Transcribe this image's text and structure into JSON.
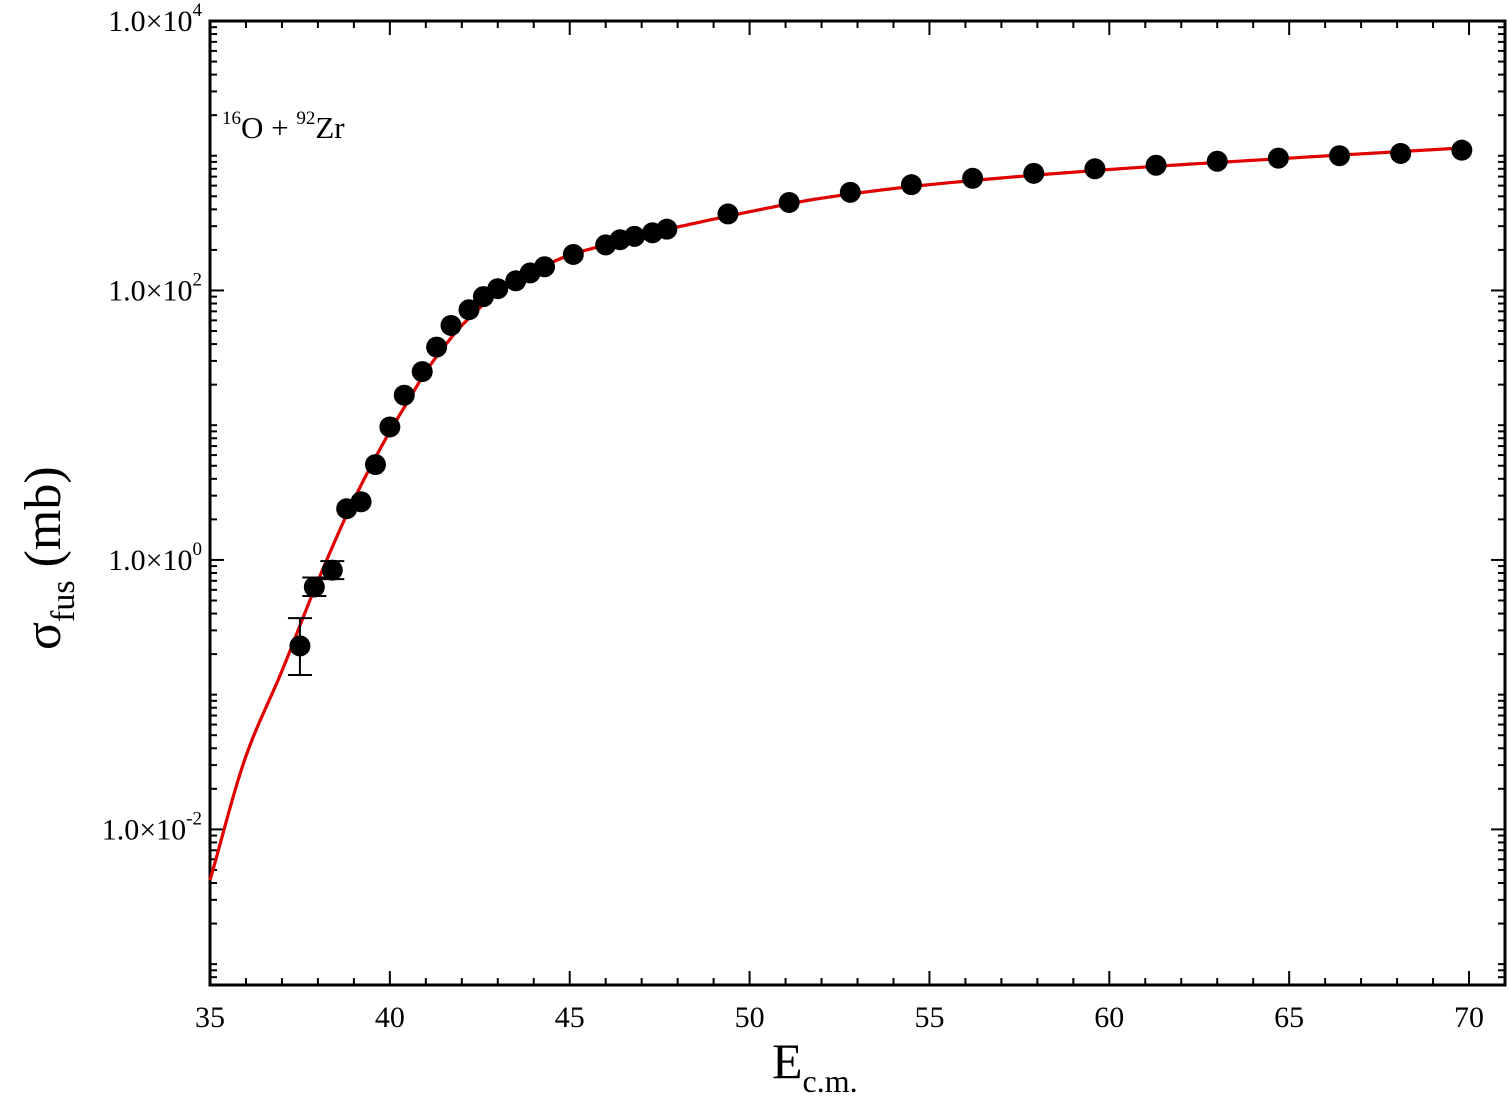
{
  "chart_data": {
    "type": "scatter",
    "title": "",
    "annotation": {
      "mass1": "16",
      "element1": "O",
      "plus": " + ",
      "mass2": "92",
      "element2": "Zr"
    },
    "xlabel": {
      "main": "E",
      "sub": "c.m."
    },
    "ylabel": {
      "main": "σ",
      "sub": "fus",
      "rest": " (mb)"
    },
    "x_scale": "linear",
    "y_scale": "log",
    "xlim": [
      35,
      71
    ],
    "ylim": [
      0.0007,
      10000
    ],
    "x_ticks": [
      35,
      40,
      45,
      50,
      55,
      60,
      65,
      70
    ],
    "x_tick_labels": [
      "35",
      "40",
      "45",
      "50",
      "55",
      "60",
      "65",
      "70"
    ],
    "y_ticks": [
      {
        "value": 10000,
        "mant": "1.0×10",
        "exp": "4"
      },
      {
        "value": 100,
        "mant": "1.0×10",
        "exp": "2"
      },
      {
        "value": 1,
        "mant": "1.0×10",
        "exp": "0"
      },
      {
        "value": 0.01,
        "mant": "1.0×10",
        "exp": "-2"
      }
    ],
    "grid": false,
    "colors": {
      "points": "#000000",
      "fit_line": "#e00000",
      "axes": "#000000"
    },
    "series": [
      {
        "kind": "points_with_errorbars",
        "points": [
          {
            "x": 37.5,
            "y": 0.23,
            "lo": 0.14,
            "hi": 0.37
          },
          {
            "x": 37.9,
            "y": 0.63,
            "lo": 0.54,
            "hi": 0.74
          },
          {
            "x": 38.4,
            "y": 0.84,
            "lo": 0.72,
            "hi": 0.98
          },
          {
            "x": 38.8,
            "y": 2.4
          },
          {
            "x": 39.2,
            "y": 2.7
          },
          {
            "x": 39.6,
            "y": 5.1
          },
          {
            "x": 40.0,
            "y": 9.7
          },
          {
            "x": 40.4,
            "y": 16.7
          },
          {
            "x": 40.9,
            "y": 25
          },
          {
            "x": 41.3,
            "y": 38
          },
          {
            "x": 41.7,
            "y": 55
          },
          {
            "x": 42.2,
            "y": 72
          },
          {
            "x": 42.6,
            "y": 90
          },
          {
            "x": 43.0,
            "y": 103
          },
          {
            "x": 43.5,
            "y": 118
          },
          {
            "x": 43.9,
            "y": 135
          },
          {
            "x": 44.3,
            "y": 150
          },
          {
            "x": 45.1,
            "y": 185
          },
          {
            "x": 46.0,
            "y": 218
          },
          {
            "x": 46.4,
            "y": 238
          },
          {
            "x": 46.8,
            "y": 252
          },
          {
            "x": 47.3,
            "y": 268
          },
          {
            "x": 47.7,
            "y": 285
          },
          {
            "x": 49.4,
            "y": 370
          },
          {
            "x": 51.1,
            "y": 450
          },
          {
            "x": 52.8,
            "y": 535
          },
          {
            "x": 54.5,
            "y": 610
          },
          {
            "x": 56.2,
            "y": 680
          },
          {
            "x": 57.9,
            "y": 740
          },
          {
            "x": 59.6,
            "y": 800
          },
          {
            "x": 61.3,
            "y": 850
          },
          {
            "x": 63.0,
            "y": 910
          },
          {
            "x": 64.7,
            "y": 960
          },
          {
            "x": 66.4,
            "y": 1000
          },
          {
            "x": 68.1,
            "y": 1040
          },
          {
            "x": 69.8,
            "y": 1100
          }
        ]
      },
      {
        "kind": "line",
        "points": [
          {
            "x": 35.0,
            "y": 0.0042
          },
          {
            "x": 36.0,
            "y": 0.035
          },
          {
            "x": 37.0,
            "y": 0.15
          },
          {
            "x": 38.0,
            "y": 0.7
          },
          {
            "x": 39.0,
            "y": 2.8
          },
          {
            "x": 40.0,
            "y": 9.0
          },
          {
            "x": 40.5,
            "y": 15
          },
          {
            "x": 41.0,
            "y": 25
          },
          {
            "x": 41.5,
            "y": 38
          },
          {
            "x": 42.0,
            "y": 55
          },
          {
            "x": 43.0,
            "y": 96
          },
          {
            "x": 44.0,
            "y": 139
          },
          {
            "x": 45.0,
            "y": 183
          },
          {
            "x": 46.0,
            "y": 218
          },
          {
            "x": 47.0,
            "y": 258
          },
          {
            "x": 48.0,
            "y": 296
          },
          {
            "x": 50.0,
            "y": 384
          },
          {
            "x": 52.0,
            "y": 484
          },
          {
            "x": 55.0,
            "y": 610
          },
          {
            "x": 60.0,
            "y": 790
          },
          {
            "x": 65.0,
            "y": 960
          },
          {
            "x": 70.0,
            "y": 1150
          }
        ]
      }
    ]
  }
}
